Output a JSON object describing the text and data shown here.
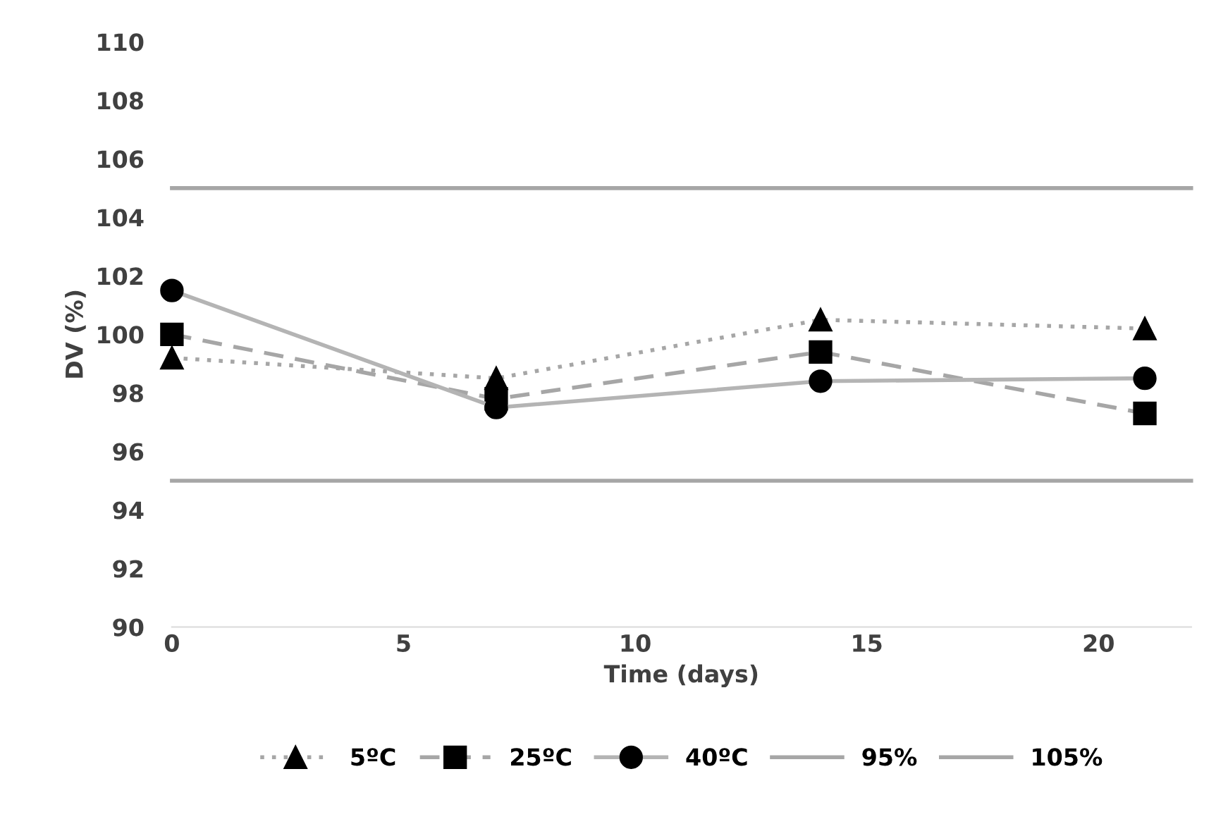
{
  "chart_data": {
    "type": "line",
    "xlabel": "Time (days)",
    "ylabel": "DV (%)",
    "xlim": [
      0,
      22
    ],
    "xticks": [
      0,
      5,
      10,
      15,
      20
    ],
    "ylim": [
      90,
      110
    ],
    "yticks": [
      90,
      92,
      94,
      96,
      98,
      100,
      102,
      104,
      106,
      108,
      110
    ],
    "grid": false,
    "legend": "bottom",
    "series": [
      {
        "name": "5ºC",
        "x": [
          0,
          7,
          14,
          21
        ],
        "values": [
          99.2,
          98.5,
          100.5,
          100.2
        ],
        "color": "#a6a6a6",
        "marker": "triangle",
        "line_style": "dotted"
      },
      {
        "name": "25ºC",
        "x": [
          0,
          7,
          14,
          21
        ],
        "values": [
          100.0,
          97.8,
          99.4,
          97.3
        ],
        "color": "#a6a6a6",
        "marker": "square",
        "line_style": "dashed"
      },
      {
        "name": "40ºC",
        "x": [
          0,
          7,
          14,
          21
        ],
        "values": [
          101.5,
          97.5,
          98.4,
          98.5
        ],
        "color": "#b4b4b4",
        "marker": "circle",
        "line_style": "solid"
      },
      {
        "name": "95%",
        "x": [
          0,
          22
        ],
        "values": [
          95,
          95
        ],
        "color": "#a6a6a6",
        "marker": "none",
        "line_style": "solid"
      },
      {
        "name": "105%",
        "x": [
          0,
          22
        ],
        "values": [
          105,
          105
        ],
        "color": "#a6a6a6",
        "marker": "none",
        "line_style": "solid"
      }
    ]
  }
}
